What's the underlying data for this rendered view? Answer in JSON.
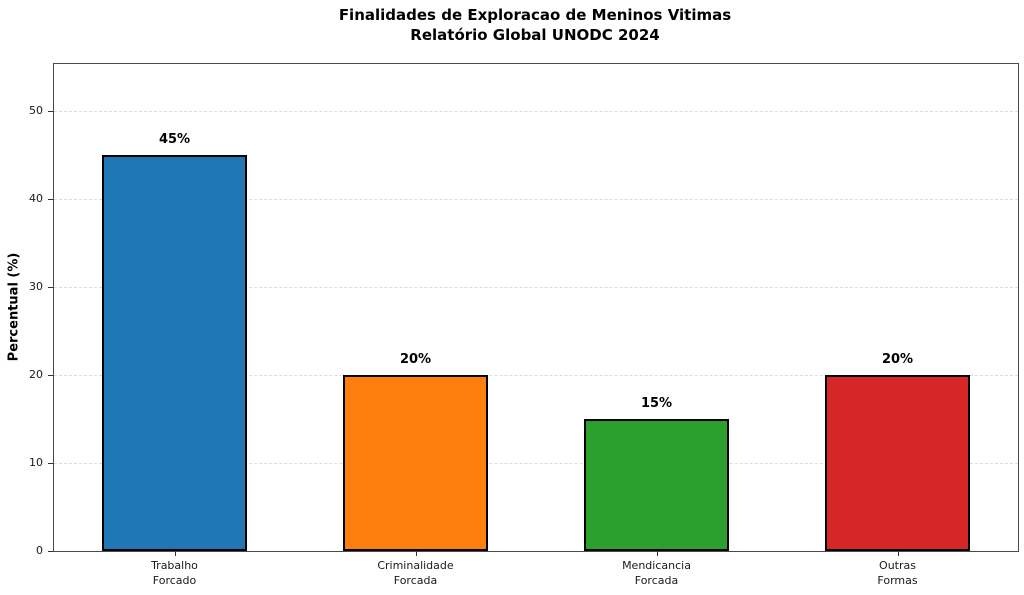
{
  "title": {
    "line1": "Finalidades de Exploracao de Meninos Vitimas",
    "line2": "Relatório Global UNODC 2024"
  },
  "chart_data": {
    "type": "bar",
    "title": "Finalidades de Exploracao de Meninos Vitimas — Relatório Global UNODC 2024",
    "categories": [
      "Trabalho\nForcado",
      "Criminalidade\nForcada",
      "Mendicancia\nForcada",
      "Outras\nFormas"
    ],
    "values": [
      45,
      20,
      15,
      20
    ],
    "value_labels": [
      "45%",
      "20%",
      "15%",
      "20%"
    ],
    "bar_colors": [
      "#1f77b4",
      "#ff7f0e",
      "#2ca02c",
      "#d62728"
    ],
    "bar_edge_color": "#000000",
    "xlabel": "",
    "ylabel": "Percentual (%)",
    "ylim": [
      0,
      55.3
    ],
    "yticks": [
      0,
      10,
      20,
      30,
      40,
      50
    ],
    "grid": "horizontal-dashed",
    "legend": "none"
  }
}
